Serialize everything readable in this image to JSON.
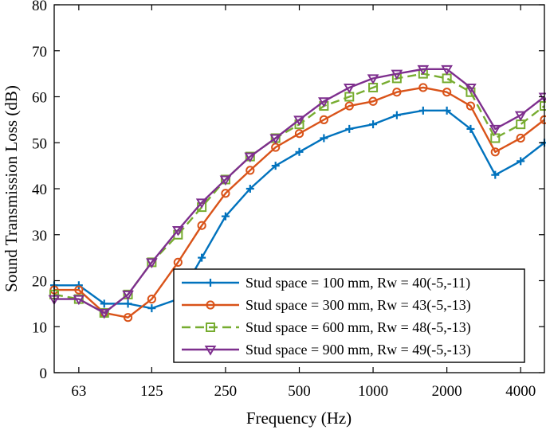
{
  "chart_data": {
    "type": "line",
    "title": "",
    "xlabel": "Frequency (Hz)",
    "ylabel": "Sound Transmission Loss (dB)",
    "ylim": [
      0,
      80
    ],
    "yticks": [
      0,
      10,
      20,
      30,
      40,
      50,
      60,
      70,
      80
    ],
    "xscale": "log",
    "x": [
      50,
      63,
      80,
      100,
      125,
      160,
      200,
      250,
      315,
      400,
      500,
      630,
      800,
      1000,
      1250,
      1600,
      2000,
      2500,
      3150,
      4000,
      5000
    ],
    "xtick_values": [
      63,
      125,
      250,
      500,
      1000,
      2000,
      4000
    ],
    "xtick_labels": [
      "63",
      "125",
      "250",
      "500",
      "1000",
      "2000",
      "4000"
    ],
    "grid": false,
    "legend_position": "bottom-right",
    "series": [
      {
        "name": "Stud space = 100 mm, Rw = 40(-5,-11)",
        "color": "#0072BD",
        "marker": "plus",
        "dash": "solid",
        "values": [
          19,
          19,
          15,
          15,
          14,
          16,
          25,
          34,
          40,
          45,
          48,
          51,
          53,
          54,
          56,
          57,
          57,
          53,
          43,
          46,
          50
        ]
      },
      {
        "name": "Stud space = 300 mm, Rw = 43(-5,-13)",
        "color": "#D95319",
        "marker": "circle",
        "dash": "solid",
        "values": [
          18,
          18,
          13,
          12,
          16,
          24,
          32,
          39,
          44,
          49,
          52,
          55,
          58,
          59,
          61,
          62,
          61,
          58,
          48,
          51,
          55
        ]
      },
      {
        "name": "Stud space = 600 mm, Rw = 48(-5,-13)",
        "color": "#77AC30",
        "marker": "square",
        "dash": "dashed",
        "values": [
          17,
          16,
          13,
          17,
          24,
          30,
          36,
          42,
          47,
          51,
          54,
          58,
          60,
          62,
          64,
          65,
          64,
          61,
          51,
          54,
          58
        ]
      },
      {
        "name": "Stud space = 900 mm, Rw = 49(-5,-13)",
        "color": "#7E2F8E",
        "marker": "triangle-down",
        "dash": "solid",
        "values": [
          16,
          16,
          13,
          17,
          24,
          31,
          37,
          42,
          47,
          51,
          55,
          59,
          62,
          64,
          65,
          66,
          66,
          62,
          53,
          56,
          60
        ]
      }
    ]
  }
}
